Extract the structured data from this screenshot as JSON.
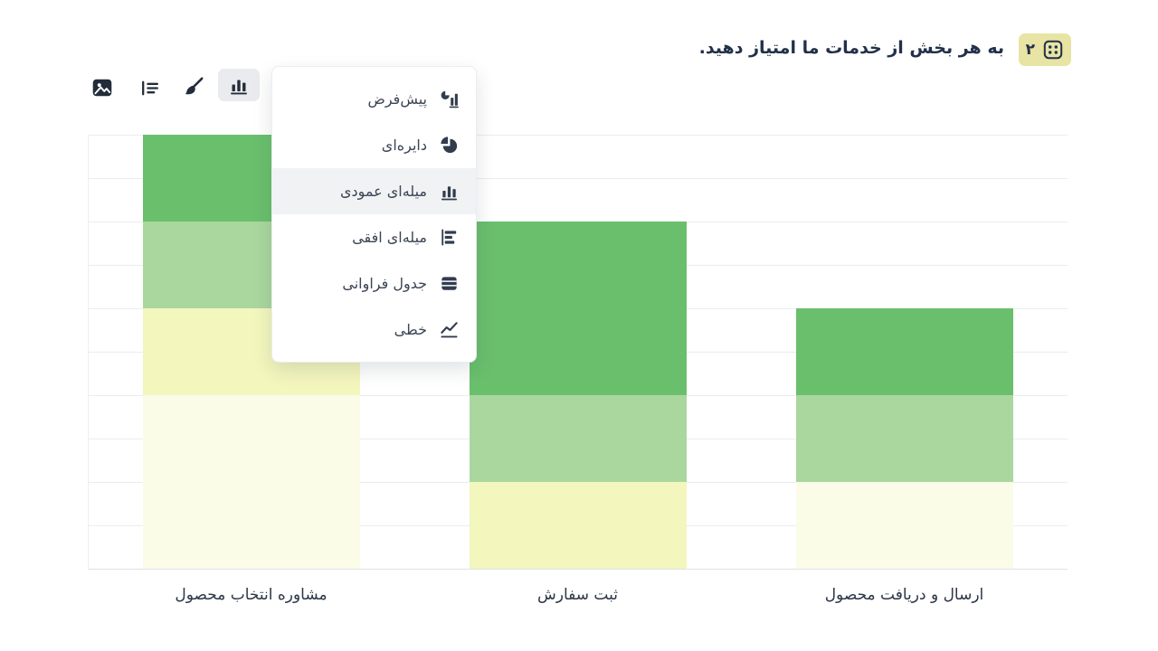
{
  "header": {
    "question_number": "۲",
    "question_title": "به هر بخش از خدمات ما امتیاز دهید.",
    "badge_color": "#e7e4a4",
    "text_color": "#22304a"
  },
  "toolbar": {
    "buttons": [
      {
        "name": "image",
        "icon": "image-icon",
        "active": false
      },
      {
        "name": "layout",
        "icon": "list-layout-icon",
        "active": false
      },
      {
        "name": "brush",
        "icon": "paintbrush-icon",
        "active": false
      },
      {
        "name": "chart-type",
        "icon": "bar-chart-icon",
        "active": true
      }
    ]
  },
  "chart_menu": {
    "items": [
      {
        "label": "پیش‌فرض",
        "icon": "default-chart-icon",
        "selected": false
      },
      {
        "label": "دایره‌ای",
        "icon": "pie-chart-icon",
        "selected": false
      },
      {
        "label": "میله‌ای عمودی",
        "icon": "vertical-bar-chart-icon",
        "selected": true
      },
      {
        "label": "میله‌ای افقی",
        "icon": "horizontal-bar-chart-icon",
        "selected": false
      },
      {
        "label": "جدول فراوانی",
        "icon": "frequency-table-icon",
        "selected": false
      },
      {
        "label": "خطی",
        "icon": "line-chart-icon",
        "selected": false
      }
    ]
  },
  "chart_data": {
    "type": "bar",
    "stacked": true,
    "orientation": "vertical",
    "categories": [
      "مشاوره انتخاب محصول",
      "ثبت سفارش",
      "ارسال و دریافت محصول"
    ],
    "categories_order": "left-to-right",
    "series": [
      {
        "name": "dark-green",
        "color": "#6abf6d",
        "values": [
          2,
          4,
          2
        ]
      },
      {
        "name": "light-green",
        "color": "#aad79e",
        "values": [
          2,
          2,
          2
        ]
      },
      {
        "name": "yellow",
        "color": "#f3f6bd",
        "values": [
          2,
          2,
          0
        ]
      },
      {
        "name": "cream",
        "color": "#fbfce8",
        "values": [
          4,
          0,
          2
        ]
      }
    ],
    "series_order": "top-to-bottom",
    "ylim": [
      0,
      10
    ],
    "gridline_interval": 1,
    "grid": true,
    "legend": false,
    "y_tick_labels_visible": false,
    "title": "",
    "xlabel": "",
    "ylabel": ""
  }
}
